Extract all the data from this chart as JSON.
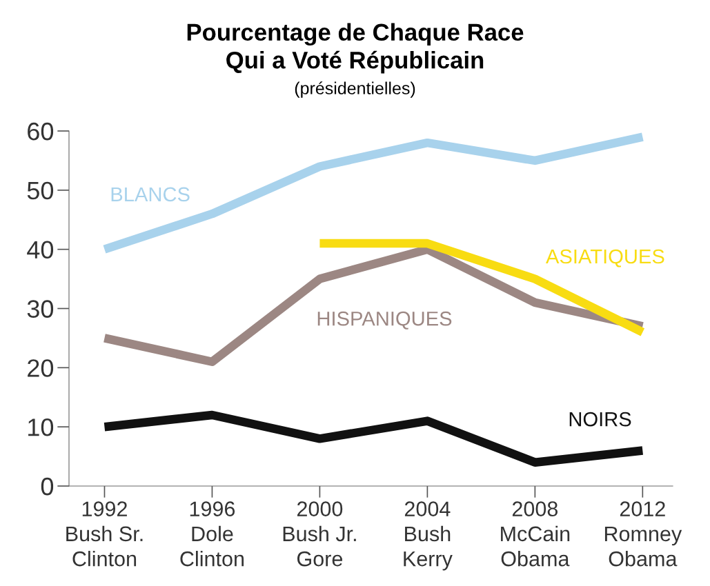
{
  "chart_data": {
    "type": "line",
    "title": "Pourcentage de Chaque Race\nQui a Voté Républicain",
    "subtitle": "(présidentielles)",
    "categories": [
      "1992\nBush Sr.\nClinton",
      "1996\nDole\nClinton",
      "2000\nBush Jr.\nGore",
      "2004\nBush\nKerry",
      "2008\nMcCain\nObama",
      "2012\nRomney\nObama"
    ],
    "series": [
      {
        "name": "BLANCS",
        "color": "#a8d2ec",
        "values": [
          40,
          46,
          54,
          58,
          55,
          59
        ]
      },
      {
        "name": "HISPANIQUES",
        "color": "#9c8783",
        "values": [
          25,
          21,
          35,
          40,
          31,
          27
        ]
      },
      {
        "name": "ASIATIQUES",
        "color": "#f8dc12",
        "values": [
          null,
          null,
          41,
          41,
          35,
          26
        ]
      },
      {
        "name": "NOIRS",
        "color": "#111111",
        "values": [
          10,
          12,
          8,
          11,
          4,
          6
        ]
      }
    ],
    "ylim": [
      0,
      60
    ],
    "yticks": [
      0,
      10,
      20,
      30,
      40,
      50,
      60
    ],
    "grid": false,
    "legend": false,
    "marker": "none",
    "line_style": "solid"
  }
}
